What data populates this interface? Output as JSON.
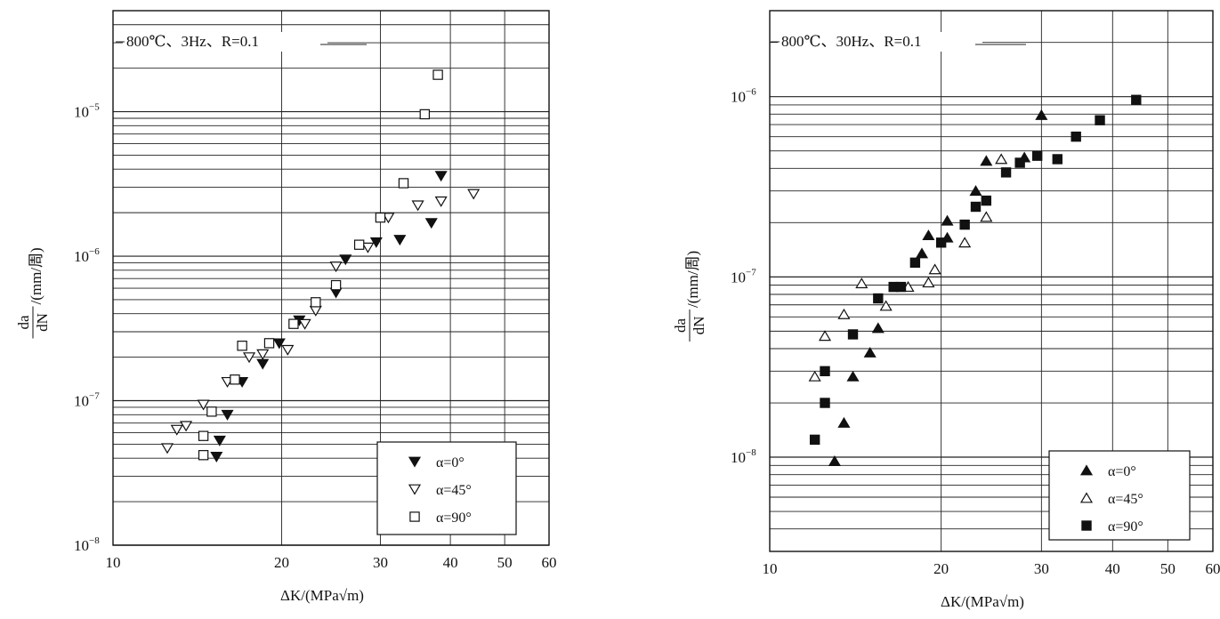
{
  "chart_data": [
    {
      "type": "scatter",
      "condition": "800℃、3Hz、R=0.1",
      "xlabel": "ΔK/(MPa√m)",
      "ylabel": "da/dN/(mm/周)",
      "ylabel_fraction": {
        "num": "da",
        "den": "dN",
        "rest": "/(mm/周)"
      },
      "x_scale": "log",
      "y_scale": "log",
      "xlim": [
        10,
        60
      ],
      "ylim": [
        1e-08,
        5e-05
      ],
      "x_ticks": [
        10,
        20,
        30,
        40,
        50,
        60
      ],
      "y_ticks": [
        {
          "value": 1e-08,
          "base": "10",
          "exp": "−8"
        },
        {
          "value": 1e-07,
          "base": "10",
          "exp": "−7"
        },
        {
          "value": 1e-06,
          "base": "10",
          "exp": "−6"
        },
        {
          "value": 1e-05,
          "base": "10",
          "exp": "−5"
        }
      ],
      "legend_position": "bottom-right",
      "series": [
        {
          "name": "α=0°",
          "marker": "triangle-down-filled",
          "points": [
            [
              15.3,
              4.1e-08
            ],
            [
              15.5,
              5.3e-08
            ],
            [
              16.0,
              8e-08
            ],
            [
              17.0,
              1.35e-07
            ],
            [
              18.5,
              1.8e-07
            ],
            [
              19.8,
              2.5e-07
            ],
            [
              21.5,
              3.6e-07
            ],
            [
              25.0,
              5.6e-07
            ],
            [
              26.0,
              9.5e-07
            ],
            [
              29.5,
              1.25e-06
            ],
            [
              32.5,
              1.3e-06
            ],
            [
              37.0,
              1.7e-06
            ],
            [
              38.5,
              3.6e-06
            ]
          ]
        },
        {
          "name": "α=45°",
          "marker": "triangle-down-open",
          "points": [
            [
              12.5,
              4.7e-08
            ],
            [
              13.0,
              6.3e-08
            ],
            [
              13.5,
              6.7e-08
            ],
            [
              14.5,
              9.4e-08
            ],
            [
              16.0,
              1.35e-07
            ],
            [
              17.5,
              2e-07
            ],
            [
              18.5,
              2.1e-07
            ],
            [
              20.5,
              2.25e-07
            ],
            [
              22.0,
              3.4e-07
            ],
            [
              23.0,
              4.2e-07
            ],
            [
              25.0,
              8.5e-07
            ],
            [
              28.5,
              1.15e-06
            ],
            [
              31.0,
              1.85e-06
            ],
            [
              35.0,
              2.25e-06
            ],
            [
              38.5,
              2.4e-06
            ],
            [
              44.0,
              2.7e-06
            ]
          ]
        },
        {
          "name": "α=90°",
          "marker": "square-open",
          "points": [
            [
              14.5,
              4.2e-08
            ],
            [
              14.5,
              5.7e-08
            ],
            [
              15.0,
              8.4e-08
            ],
            [
              16.5,
              1.4e-07
            ],
            [
              17.0,
              2.4e-07
            ],
            [
              19.0,
              2.5e-07
            ],
            [
              21.0,
              3.4e-07
            ],
            [
              23.0,
              4.8e-07
            ],
            [
              25.0,
              6.3e-07
            ],
            [
              27.5,
              1.2e-06
            ],
            [
              30.0,
              1.85e-06
            ],
            [
              33.0,
              3.2e-06
            ],
            [
              36.0,
              9.6e-06
            ],
            [
              38.0,
              1.8e-05
            ]
          ]
        }
      ]
    },
    {
      "type": "scatter",
      "condition": "800℃、30Hz、R=0.1",
      "xlabel": "ΔK/(MPa√m)",
      "ylabel": "da/dN/(mm/周)",
      "ylabel_fraction": {
        "num": "da",
        "den": "dN",
        "rest": "/(mm/周)"
      },
      "x_scale": "log",
      "y_scale": "log",
      "xlim": [
        10,
        60
      ],
      "ylim": [
        3e-09,
        3e-06
      ],
      "x_ticks": [
        10,
        20,
        30,
        40,
        50,
        60
      ],
      "y_ticks": [
        {
          "value": 1e-08,
          "base": "10",
          "exp": "−8"
        },
        {
          "value": 1e-07,
          "base": "10",
          "exp": "−7"
        },
        {
          "value": 1e-06,
          "base": "10",
          "exp": "−6"
        }
      ],
      "legend_position": "bottom-right",
      "series": [
        {
          "name": "α=0°",
          "marker": "triangle-up-filled",
          "points": [
            [
              13.0,
              9.5e-09
            ],
            [
              13.5,
              1.55e-08
            ],
            [
              14.0,
              2.8e-08
            ],
            [
              15.0,
              3.8e-08
            ],
            [
              15.5,
              5.2e-08
            ],
            [
              18.5,
              1.35e-07
            ],
            [
              19.0,
              1.7e-07
            ],
            [
              20.5,
              2.05e-07
            ],
            [
              20.5,
              1.65e-07
            ],
            [
              23.0,
              3e-07
            ],
            [
              24.0,
              4.4e-07
            ],
            [
              28.0,
              4.6e-07
            ],
            [
              30.0,
              7.9e-07
            ]
          ]
        },
        {
          "name": "α=45°",
          "marker": "triangle-up-open",
          "points": [
            [
              12.0,
              2.8e-08
            ],
            [
              12.5,
              4.7e-08
            ],
            [
              13.5,
              6.2e-08
            ],
            [
              14.5,
              9.2e-08
            ],
            [
              16.0,
              6.9e-08
            ],
            [
              17.5,
              8.8e-08
            ],
            [
              19.0,
              9.3e-08
            ],
            [
              19.5,
              1.1e-07
            ],
            [
              22.0,
              1.55e-07
            ],
            [
              24.0,
              2.15e-07
            ],
            [
              25.5,
              4.5e-07
            ]
          ]
        },
        {
          "name": "α=90°",
          "marker": "square-filled",
          "points": [
            [
              12.0,
              1.25e-08
            ],
            [
              12.5,
              2e-08
            ],
            [
              12.5,
              3e-08
            ],
            [
              14.0,
              4.8e-08
            ],
            [
              15.5,
              7.6e-08
            ],
            [
              16.5,
              8.8e-08
            ],
            [
              17.0,
              8.8e-08
            ],
            [
              18.0,
              1.2e-07
            ],
            [
              20.0,
              1.55e-07
            ],
            [
              22.0,
              1.95e-07
            ],
            [
              23.0,
              2.45e-07
            ],
            [
              24.0,
              2.65e-07
            ],
            [
              26.0,
              3.8e-07
            ],
            [
              27.5,
              4.3e-07
            ],
            [
              29.5,
              4.7e-07
            ],
            [
              32.0,
              4.5e-07
            ],
            [
              34.5,
              6e-07
            ],
            [
              38.0,
              7.4e-07
            ],
            [
              44.0,
              9.6e-07
            ]
          ]
        }
      ]
    }
  ]
}
